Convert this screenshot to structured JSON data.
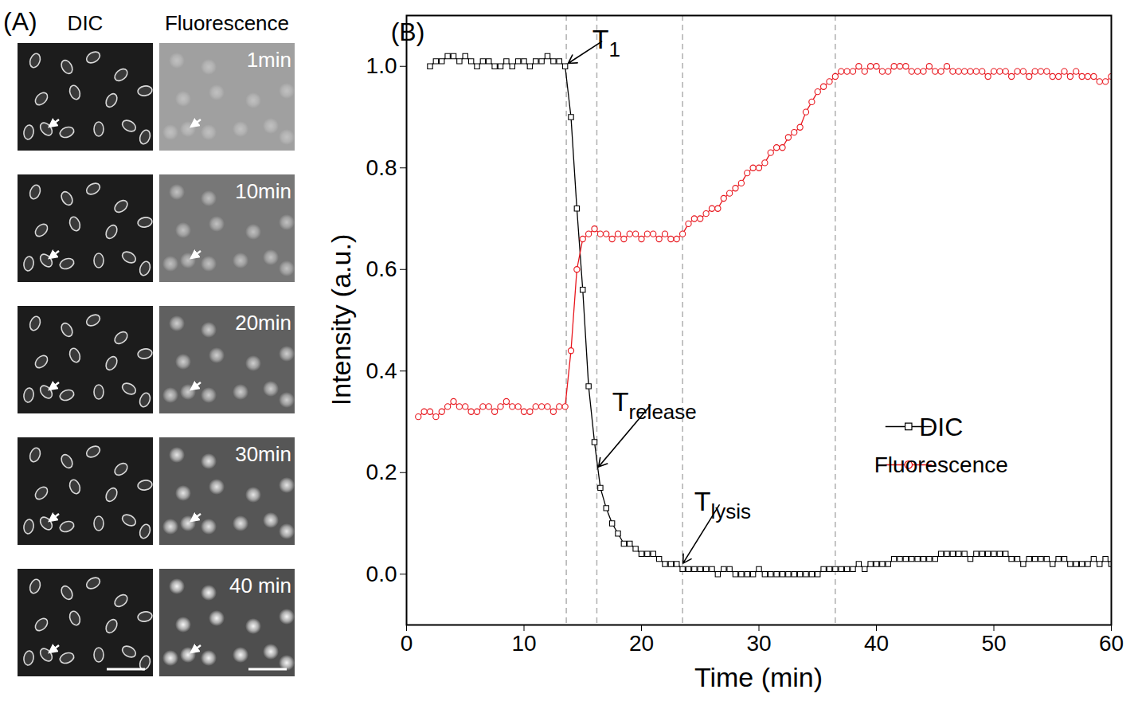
{
  "chart_data": {
    "type": "line",
    "panel_label": "(B)",
    "x_label": "Time (min)",
    "y_label": "Intensity (a.u.)",
    "xlim": [
      0,
      60
    ],
    "xticks": [
      0,
      10,
      20,
      30,
      40,
      50,
      60
    ],
    "ylim": [
      -0.1,
      1.1
    ],
    "yticks": [
      {
        "value": 0,
        "label": "0.0"
      },
      {
        "value": 0.2,
        "label": "0.2"
      },
      {
        "value": 0.4,
        "label": "0.4"
      },
      {
        "value": 0.6,
        "label": "0.6"
      },
      {
        "value": 0.8,
        "label": "0.8"
      },
      {
        "value": 1,
        "label": "1.0"
      }
    ],
    "legend": "right",
    "x": [
      1,
      1.5,
      2,
      2.5,
      3,
      3.5,
      4,
      4.5,
      5,
      5.5,
      6,
      6.5,
      7,
      7.5,
      8,
      8.5,
      9,
      9.5,
      10,
      10.5,
      11,
      11.5,
      12,
      12.5,
      13,
      13.5,
      14,
      14.5,
      15,
      15.5,
      16,
      16.5,
      17,
      17.5,
      18,
      18.5,
      19,
      19.5,
      20,
      20.5,
      21,
      21.5,
      22,
      22.5,
      23,
      23.5,
      24,
      24.5,
      25,
      25.5,
      26,
      26.5,
      27,
      27.5,
      28,
      28.5,
      29,
      29.5,
      30,
      30.5,
      31,
      31.5,
      32,
      32.5,
      33,
      33.5,
      34,
      34.5,
      35,
      35.5,
      36,
      36.5,
      37,
      37.5,
      38,
      38.5,
      39,
      39.5,
      40,
      40.5,
      41,
      41.5,
      42,
      42.5,
      43,
      43.5,
      44,
      44.5,
      45,
      45.5,
      46,
      46.5,
      47,
      47.5,
      48,
      48.5,
      49,
      49.5,
      50,
      50.5,
      51,
      51.5,
      52,
      52.5,
      53,
      53.5,
      54,
      54.5,
      55,
      55.5,
      56,
      56.5,
      57,
      57.5,
      58,
      58.5,
      59,
      59.5,
      60
    ],
    "series": [
      {
        "name": "DIC",
        "color": "#000000",
        "marker": "square",
        "values": [
          null,
          null,
          1.0,
          1.01,
          1.01,
          1.02,
          1.02,
          1.01,
          1.02,
          1.01,
          1.0,
          1.01,
          1.01,
          1.0,
          1.0,
          1.01,
          1.0,
          1.01,
          1.01,
          1.0,
          1.01,
          1.01,
          1.02,
          1.01,
          1.01,
          1.0,
          0.9,
          0.72,
          0.56,
          0.37,
          0.26,
          0.17,
          0.13,
          0.1,
          0.08,
          0.06,
          0.06,
          0.05,
          0.04,
          0.04,
          0.04,
          0.03,
          0.02,
          0.02,
          0.02,
          0.01,
          0.01,
          0.01,
          0.01,
          0.01,
          0.01,
          0.0,
          0.01,
          0.01,
          0.0,
          0.0,
          0.0,
          0.0,
          0.01,
          0.0,
          0.0,
          0.0,
          0.0,
          0.0,
          0.0,
          0.0,
          0.0,
          0.0,
          0.0,
          0.01,
          0.01,
          0.01,
          0.01,
          0.01,
          0.01,
          0.02,
          0.01,
          0.02,
          0.02,
          0.02,
          0.02,
          0.03,
          0.03,
          0.03,
          0.03,
          0.03,
          0.03,
          0.03,
          0.03,
          0.04,
          0.04,
          0.04,
          0.04,
          0.04,
          0.03,
          0.04,
          0.04,
          0.04,
          0.04,
          0.04,
          0.04,
          0.03,
          0.03,
          0.02,
          0.03,
          0.03,
          0.03,
          0.03,
          0.02,
          0.03,
          0.03,
          0.02,
          0.02,
          0.02,
          0.02,
          0.03,
          0.02,
          0.03,
          0.02
        ]
      },
      {
        "name": "Fluorescence",
        "color": "#e8161d",
        "marker": "circle",
        "values": [
          0.31,
          0.32,
          0.32,
          0.31,
          0.32,
          0.33,
          0.34,
          0.33,
          0.33,
          0.32,
          0.32,
          0.33,
          0.33,
          0.32,
          0.33,
          0.34,
          0.33,
          0.33,
          0.32,
          0.32,
          0.33,
          0.33,
          0.33,
          0.32,
          0.33,
          0.33,
          0.44,
          0.6,
          0.66,
          0.67,
          0.68,
          0.67,
          0.67,
          0.66,
          0.67,
          0.66,
          0.67,
          0.67,
          0.66,
          0.67,
          0.67,
          0.66,
          0.67,
          0.66,
          0.66,
          0.67,
          0.69,
          0.7,
          0.7,
          0.71,
          0.72,
          0.72,
          0.74,
          0.75,
          0.76,
          0.77,
          0.79,
          0.8,
          0.8,
          0.81,
          0.83,
          0.84,
          0.84,
          0.86,
          0.87,
          0.88,
          0.91,
          0.93,
          0.95,
          0.96,
          0.97,
          0.98,
          0.99,
          0.99,
          0.99,
          1.0,
          0.99,
          1.0,
          1.0,
          0.99,
          0.99,
          1.0,
          1.0,
          1.0,
          0.99,
          0.99,
          0.99,
          1.0,
          0.99,
          0.99,
          1.0,
          0.99,
          0.99,
          0.99,
          0.99,
          0.99,
          0.99,
          0.98,
          0.99,
          0.99,
          0.99,
          0.98,
          0.99,
          0.99,
          0.98,
          0.99,
          0.99,
          0.99,
          0.98,
          0.98,
          0.99,
          0.98,
          0.99,
          0.98,
          0.98,
          0.98,
          0.97,
          0.97,
          0.98
        ]
      }
    ],
    "reference_lines": [
      13.6,
      16.2,
      23.5,
      36.5
    ],
    "annotations": [
      {
        "text": "T",
        "subscript": "1",
        "x": 13.7,
        "y": 1.005,
        "text_x": 16.9,
        "text_y": 1.053
      },
      {
        "text": "T",
        "subscript": "release",
        "x": 16.3,
        "y": 0.21,
        "text_x": 21.0,
        "text_y": 0.339
      },
      {
        "text": "T",
        "subscript": "lysis",
        "x": 23.5,
        "y": 0.02,
        "text_x": 26.8,
        "text_y": 0.143
      }
    ]
  },
  "image_panel": {
    "label": "(A)",
    "column_titles": [
      "DIC",
      "Fluorescence"
    ],
    "time_labels": [
      "1min",
      "10min",
      "20min",
      "30min",
      "40 min"
    ]
  }
}
